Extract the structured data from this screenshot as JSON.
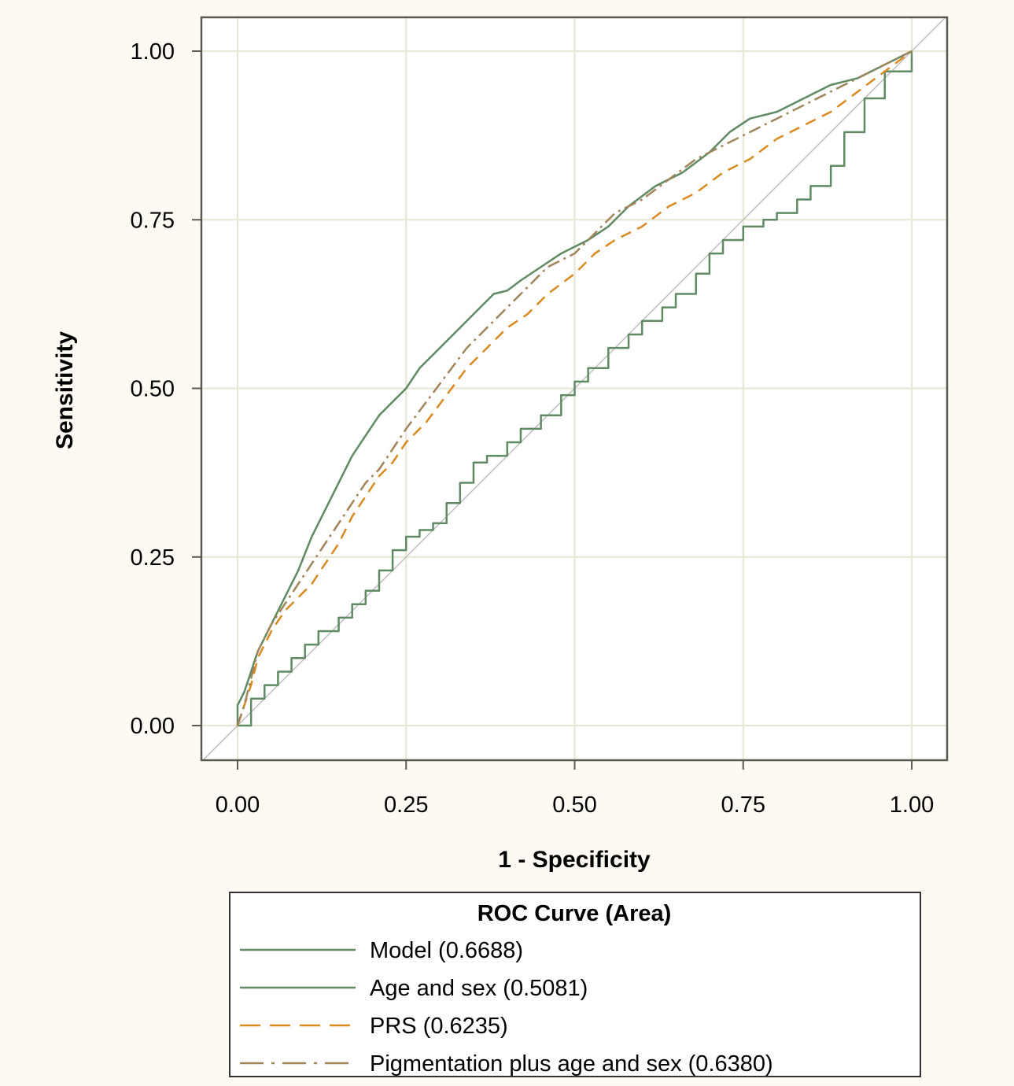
{
  "chart_data": {
    "type": "line",
    "title": "",
    "xlabel": "1 - Specificity",
    "ylabel": "Sensitivity",
    "xlim": [
      -0.05,
      1.05
    ],
    "ylim": [
      -0.05,
      1.05
    ],
    "x_ticks": [
      "0.00",
      "0.25",
      "0.50",
      "0.75",
      "1.00"
    ],
    "y_ticks": [
      "0.00",
      "0.25",
      "0.50",
      "0.75",
      "1.00"
    ],
    "tick_values": [
      0,
      0.25,
      0.5,
      0.75,
      1.0
    ],
    "grid": true,
    "reference_line": true,
    "legend": {
      "title": "ROC Curve (Area)",
      "placement": "bottom",
      "entries": [
        {
          "label": "Model  (0.6688)"
        },
        {
          "label": "Age and sex  (0.5081)"
        },
        {
          "label": "PRS  (0.6235)"
        },
        {
          "label": "Pigmentation plus age and sex  (0.6380)"
        }
      ]
    },
    "series": [
      {
        "area": 0.6688,
        "color": "#5f8a64",
        "dash": "none",
        "x": [
          0,
          0,
          0.01,
          0.02,
          0.03,
          0.05,
          0.07,
          0.09,
          0.11,
          0.13,
          0.15,
          0.17,
          0.19,
          0.21,
          0.23,
          0.25,
          0.27,
          0.3,
          0.33,
          0.36,
          0.38,
          0.4,
          0.42,
          0.45,
          0.48,
          0.5,
          0.52,
          0.55,
          0.58,
          0.62,
          0.66,
          0.7,
          0.73,
          0.76,
          0.8,
          0.84,
          0.88,
          0.92,
          0.96,
          1.0
        ],
        "y": [
          0,
          0.03,
          0.05,
          0.08,
          0.11,
          0.15,
          0.19,
          0.23,
          0.28,
          0.32,
          0.36,
          0.4,
          0.43,
          0.46,
          0.48,
          0.5,
          0.53,
          0.56,
          0.59,
          0.62,
          0.64,
          0.645,
          0.66,
          0.68,
          0.7,
          0.71,
          0.72,
          0.74,
          0.77,
          0.8,
          0.82,
          0.85,
          0.88,
          0.9,
          0.91,
          0.93,
          0.95,
          0.96,
          0.98,
          1.0
        ]
      },
      {
        "area": 0.5081,
        "color": "#5f8a64",
        "dash": "none",
        "step": true,
        "x": [
          0,
          0.02,
          0.04,
          0.06,
          0.08,
          0.1,
          0.12,
          0.15,
          0.17,
          0.19,
          0.21,
          0.23,
          0.25,
          0.27,
          0.29,
          0.31,
          0.33,
          0.35,
          0.37,
          0.4,
          0.42,
          0.45,
          0.48,
          0.5,
          0.52,
          0.55,
          0.58,
          0.6,
          0.63,
          0.65,
          0.68,
          0.7,
          0.72,
          0.75,
          0.78,
          0.8,
          0.83,
          0.85,
          0.88,
          0.9,
          0.93,
          0.96,
          1.0
        ],
        "y": [
          0,
          0.04,
          0.06,
          0.08,
          0.1,
          0.12,
          0.14,
          0.16,
          0.18,
          0.2,
          0.23,
          0.26,
          0.28,
          0.29,
          0.3,
          0.33,
          0.36,
          0.39,
          0.4,
          0.42,
          0.44,
          0.46,
          0.49,
          0.51,
          0.53,
          0.56,
          0.58,
          0.6,
          0.62,
          0.64,
          0.67,
          0.7,
          0.72,
          0.74,
          0.75,
          0.76,
          0.78,
          0.8,
          0.83,
          0.88,
          0.93,
          0.97,
          1.0
        ]
      },
      {
        "area": 0.6235,
        "color": "#d98a1e",
        "dash": "14,9",
        "x": [
          0,
          0.01,
          0.02,
          0.03,
          0.05,
          0.07,
          0.09,
          0.11,
          0.13,
          0.15,
          0.17,
          0.19,
          0.21,
          0.23,
          0.25,
          0.28,
          0.31,
          0.34,
          0.37,
          0.4,
          0.43,
          0.46,
          0.5,
          0.53,
          0.56,
          0.6,
          0.64,
          0.68,
          0.72,
          0.76,
          0.8,
          0.84,
          0.88,
          0.92,
          0.96,
          1.0
        ],
        "y": [
          0,
          0.03,
          0.06,
          0.1,
          0.14,
          0.17,
          0.19,
          0.21,
          0.24,
          0.27,
          0.31,
          0.34,
          0.37,
          0.39,
          0.42,
          0.45,
          0.49,
          0.53,
          0.56,
          0.59,
          0.61,
          0.64,
          0.67,
          0.7,
          0.72,
          0.74,
          0.77,
          0.79,
          0.82,
          0.84,
          0.87,
          0.89,
          0.91,
          0.94,
          0.97,
          1.0
        ]
      },
      {
        "area": 0.638,
        "color": "#a1855a",
        "dash": "16,6,3,6",
        "x": [
          0,
          0.01,
          0.02,
          0.03,
          0.05,
          0.07,
          0.09,
          0.11,
          0.13,
          0.15,
          0.17,
          0.19,
          0.21,
          0.23,
          0.25,
          0.28,
          0.31,
          0.34,
          0.37,
          0.4,
          0.43,
          0.46,
          0.5,
          0.53,
          0.56,
          0.6,
          0.64,
          0.68,
          0.72,
          0.76,
          0.8,
          0.84,
          0.88,
          0.92,
          0.96,
          1.0
        ],
        "y": [
          0,
          0.03,
          0.07,
          0.11,
          0.15,
          0.18,
          0.21,
          0.24,
          0.27,
          0.3,
          0.33,
          0.36,
          0.38,
          0.41,
          0.44,
          0.48,
          0.52,
          0.56,
          0.59,
          0.62,
          0.65,
          0.68,
          0.7,
          0.73,
          0.76,
          0.78,
          0.81,
          0.84,
          0.86,
          0.88,
          0.9,
          0.92,
          0.94,
          0.96,
          0.98,
          1.0
        ]
      }
    ]
  }
}
